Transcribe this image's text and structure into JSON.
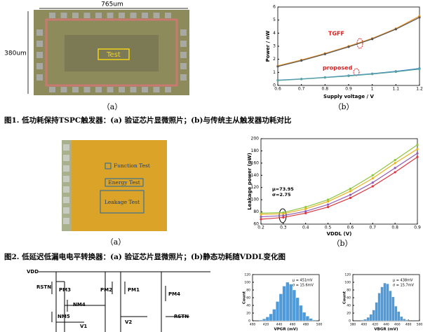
{
  "figure1": {
    "photo": {
      "width_label": "765um",
      "height_label": "380um",
      "box_label": "Test",
      "panel": "（a）"
    },
    "chart": {
      "type": "line",
      "panel": "（b）",
      "xlabel": "Supply voltage / V",
      "ylabel": "Power / nW",
      "x": [
        0.6,
        0.7,
        0.8,
        0.9,
        1.0,
        1.1,
        1.2
      ],
      "series": [
        {
          "color": "#e8932a",
          "values": [
            1.5,
            1.95,
            2.45,
            3.0,
            3.6,
            4.35,
            5.3
          ]
        },
        {
          "color": "#555555",
          "values": [
            1.45,
            1.9,
            2.4,
            2.95,
            3.55,
            4.3,
            5.2
          ]
        },
        {
          "color": "#2f7fc1",
          "values": [
            0.4,
            0.5,
            0.62,
            0.75,
            0.9,
            1.08,
            1.3
          ]
        },
        {
          "color": "#5aa5a0",
          "values": [
            0.38,
            0.48,
            0.6,
            0.72,
            0.87,
            1.04,
            1.25
          ]
        }
      ],
      "xlim": [
        0.6,
        1.2
      ],
      "ylim": [
        0,
        6
      ],
      "xticks": [
        0.6,
        0.7,
        0.8,
        0.9,
        1.0,
        1.1,
        1.2
      ],
      "yticks": [
        0,
        1,
        2,
        3,
        4,
        5,
        6
      ],
      "annotations": [
        "TGFF",
        "proposed"
      ]
    },
    "caption": "图1. 低功耗保持TSPC触发器：(a) 验证芯片显微照片；(b)与传统主从触发器功耗对比"
  },
  "figure2": {
    "photo": {
      "labels": [
        "Function Test",
        "Energy Test",
        "Leakage Test"
      ],
      "panel": "（a）"
    },
    "chart": {
      "type": "line",
      "panel": "（b）",
      "xlabel": "VDDL (V)",
      "ylabel": "Leakage power (pW)",
      "x": [
        0.2,
        0.3,
        0.4,
        0.5,
        0.6,
        0.7,
        0.8,
        0.9
      ],
      "series": [
        {
          "color": "#8cc63f",
          "values": [
            78,
            79,
            88,
            100,
            118,
            140,
            165,
            190
          ]
        },
        {
          "color": "#e6b422",
          "values": [
            76,
            77,
            85,
            97,
            114,
            135,
            160,
            183
          ]
        },
        {
          "color": "#8e5bb5",
          "values": [
            72,
            74,
            81,
            92,
            108,
            128,
            152,
            176
          ]
        },
        {
          "color": "#d9363e",
          "values": [
            68,
            71,
            78,
            88,
            103,
            122,
            145,
            170
          ]
        }
      ],
      "xlim": [
        0.2,
        0.9
      ],
      "ylim": [
        60,
        200
      ],
      "xticks": [
        0.2,
        0.3,
        0.4,
        0.5,
        0.6,
        0.7,
        0.8,
        0.9
      ],
      "yticks": [
        60,
        80,
        100,
        120,
        140,
        160,
        180,
        200
      ],
      "annotations": [
        "μ=73.95",
        "σ=2.75"
      ]
    },
    "caption": "图2. 低延迟低漏电电平转换器：(a) 验证芯片显微照片；(b)静态功耗随VDDL变化图"
  },
  "figure3": {
    "circuit": {
      "labels": [
        "VDD",
        "RSTN",
        "PM3",
        "NM4",
        "NM5",
        "V1",
        "PM2",
        "PM1",
        "V2",
        "PM4",
        "RSTN"
      ]
    },
    "histograms": [
      {
        "type": "histogram",
        "xlabel": "VPGR (mV)",
        "ylabel": "Count",
        "stats": [
          "μ = 451mV",
          "σ = 15.6mV"
        ],
        "color": "#4f9bd9",
        "bins": [
          410,
          415,
          420,
          425,
          430,
          435,
          440,
          445,
          450,
          455,
          460,
          465,
          470,
          475,
          480,
          485,
          490,
          495
        ],
        "counts": [
          2,
          5,
          10,
          18,
          30,
          50,
          70,
          90,
          100,
          95,
          80,
          60,
          40,
          22,
          12,
          6,
          2
        ],
        "xlim": [
          400,
          500
        ],
        "ylim": [
          0,
          120
        ],
        "xticks": [
          400,
          420,
          440,
          460,
          480,
          500
        ],
        "yticks": [
          0,
          20,
          40,
          60,
          80,
          100,
          120
        ]
      },
      {
        "type": "histogram",
        "xlabel": "VBGR (mV)",
        "ylabel": "Count",
        "stats": [
          "μ = 438mV",
          "σ = 15.7mV"
        ],
        "color": "#4f9bd9",
        "bins": [
          395,
          400,
          405,
          410,
          415,
          420,
          425,
          430,
          435,
          440,
          445,
          450,
          455,
          460,
          465,
          470,
          475,
          480
        ],
        "counts": [
          2,
          4,
          9,
          17,
          28,
          48,
          72,
          88,
          98,
          96,
          78,
          62,
          38,
          24,
          11,
          5,
          2
        ],
        "xlim": [
          380,
          500
        ],
        "ylim": [
          0,
          120
        ],
        "xticks": [
          380,
          400,
          420,
          440,
          460,
          480,
          500
        ],
        "yticks": [
          0,
          20,
          40,
          60,
          80,
          100,
          120
        ]
      }
    ]
  }
}
